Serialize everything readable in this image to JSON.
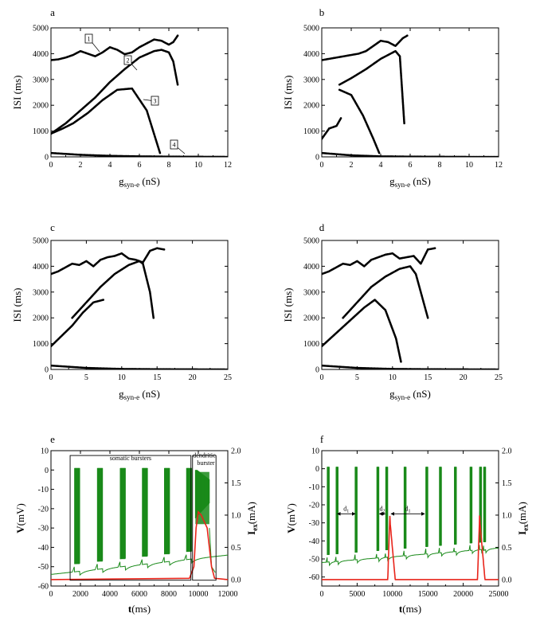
{
  "chart_data": [
    {
      "panel": "a",
      "type": "scatter",
      "xlabel": "g",
      "xlabel_sub": "syn-e",
      "xlabel_unit": " (nS)",
      "ylabel": "ISI (ms)",
      "xlim": [
        0,
        12
      ],
      "ylim": [
        0,
        5000
      ],
      "xticks": [
        "0",
        "2",
        "4",
        "6",
        "8",
        "10",
        "12"
      ],
      "yticks": [
        "0",
        "1000",
        "2000",
        "3000",
        "4000",
        "5000"
      ],
      "callouts": [
        "1",
        "2",
        "3",
        "4"
      ],
      "series": [
        {
          "x": [
            0,
            0.5,
            1,
            1.5,
            2,
            2.5,
            3,
            3.5,
            4,
            4.5,
            5,
            5.5,
            6,
            6.5,
            7,
            7.5,
            8,
            8.3,
            8.6
          ],
          "y": [
            3750,
            3780,
            3850,
            3950,
            4100,
            4000,
            3900,
            4050,
            4250,
            4150,
            3980,
            4050,
            4250,
            4400,
            4550,
            4500,
            4350,
            4450,
            4700
          ]
        },
        {
          "x": [
            0,
            1,
            2,
            3,
            4,
            5,
            6,
            7,
            7.5,
            8,
            8.3,
            8.6
          ],
          "y": [
            900,
            1300,
            1800,
            2300,
            2900,
            3400,
            3850,
            4100,
            4150,
            4050,
            3700,
            2800
          ]
        },
        {
          "x": [
            0,
            0.8,
            1.5,
            2.5,
            3.5,
            4.5,
            5.5,
            6.5,
            7.4
          ],
          "y": [
            900,
            1100,
            1300,
            1700,
            2200,
            2600,
            2650,
            1800,
            150
          ]
        },
        {
          "x": [
            0,
            2,
            4,
            6,
            8,
            10,
            12
          ],
          "y": [
            150,
            80,
            40,
            20,
            10,
            5,
            0
          ]
        }
      ]
    },
    {
      "panel": "b",
      "type": "scatter",
      "xlabel": "g",
      "xlabel_sub": "syn-e",
      "xlabel_unit": " (nS)",
      "ylabel": "ISI (ms)",
      "xlim": [
        0,
        12
      ],
      "ylim": [
        0,
        5000
      ],
      "xticks": [
        "0",
        "2",
        "4",
        "6",
        "8",
        "10",
        "12"
      ],
      "yticks": [
        "0",
        "1000",
        "2000",
        "3000",
        "4000",
        "5000"
      ],
      "series": [
        {
          "x": [
            0,
            0.5,
            1,
            1.5,
            2,
            2.5,
            3,
            3.5,
            4,
            4.5,
            5,
            5.5,
            5.8
          ],
          "y": [
            3750,
            3800,
            3850,
            3900,
            3950,
            4000,
            4100,
            4300,
            4500,
            4450,
            4300,
            4600,
            4700
          ]
        },
        {
          "x": [
            1.2,
            2,
            3,
            4,
            5,
            5.3,
            5.6
          ],
          "y": [
            2800,
            3050,
            3400,
            3800,
            4100,
            3900,
            1300
          ]
        },
        {
          "x": [
            1.2,
            2,
            2.8,
            3.5,
            3.9
          ],
          "y": [
            2600,
            2400,
            1600,
            700,
            150
          ]
        },
        {
          "x": [
            0,
            0.5,
            1,
            1.3
          ],
          "y": [
            700,
            1100,
            1200,
            1500
          ]
        },
        {
          "x": [
            0,
            2,
            4,
            6,
            8,
            10,
            12
          ],
          "y": [
            150,
            60,
            20,
            10,
            5,
            0,
            0
          ]
        }
      ]
    },
    {
      "panel": "c",
      "type": "scatter",
      "xlabel": "g",
      "xlabel_sub": "syn-e",
      "xlabel_unit": " (nS)",
      "ylabel": "ISI (ms)",
      "xlim": [
        0,
        25
      ],
      "ylim": [
        0,
        5000
      ],
      "xticks": [
        "0",
        "5",
        "10",
        "15",
        "20",
        "25"
      ],
      "yticks": [
        "0",
        "1000",
        "2000",
        "3000",
        "4000",
        "5000"
      ],
      "series": [
        {
          "x": [
            0,
            1,
            2,
            3,
            4,
            5,
            6,
            7,
            8,
            9,
            10,
            11,
            12,
            13,
            14,
            15,
            16
          ],
          "y": [
            3700,
            3800,
            3950,
            4100,
            4050,
            4200,
            4000,
            4250,
            4350,
            4400,
            4500,
            4300,
            4250,
            4150,
            4600,
            4700,
            4650
          ]
        },
        {
          "x": [
            3,
            5,
            7,
            9,
            11,
            12.5,
            13,
            14,
            14.5
          ],
          "y": [
            2000,
            2600,
            3200,
            3700,
            4050,
            4200,
            4100,
            3000,
            2000
          ]
        },
        {
          "x": [
            0,
            1.5,
            3,
            4.5,
            6,
            7.4
          ],
          "y": [
            900,
            1300,
            1700,
            2200,
            2600,
            2700
          ]
        },
        {
          "x": [
            0,
            5,
            10,
            15,
            20,
            25
          ],
          "y": [
            150,
            60,
            20,
            10,
            5,
            0
          ]
        }
      ]
    },
    {
      "panel": "d",
      "type": "scatter",
      "xlabel": "g",
      "xlabel_sub": "syn-e",
      "xlabel_unit": " (nS)",
      "ylabel": "ISI (ms)",
      "xlim": [
        0,
        25
      ],
      "ylim": [
        0,
        5000
      ],
      "xticks": [
        "0",
        "5",
        "10",
        "15",
        "20",
        "25"
      ],
      "yticks": [
        "0",
        "1000",
        "2000",
        "3000",
        "4000",
        "5000"
      ],
      "series": [
        {
          "x": [
            0,
            1,
            2,
            3,
            4,
            5,
            6,
            7,
            8,
            9,
            10,
            11,
            12,
            13,
            14,
            15,
            16
          ],
          "y": [
            3700,
            3800,
            3950,
            4100,
            4050,
            4200,
            4000,
            4250,
            4350,
            4450,
            4500,
            4300,
            4350,
            4400,
            4100,
            4650,
            4700
          ]
        },
        {
          "x": [
            3,
            5,
            7,
            9,
            11,
            12.5,
            13.3,
            14,
            15
          ],
          "y": [
            2000,
            2600,
            3200,
            3600,
            3900,
            4000,
            3700,
            3000,
            2000
          ]
        },
        {
          "x": [
            0,
            2,
            4,
            6,
            7.5,
            9,
            10.5,
            11.2
          ],
          "y": [
            900,
            1400,
            1900,
            2400,
            2700,
            2300,
            1200,
            300
          ]
        },
        {
          "x": [
            0,
            5,
            10,
            15,
            20,
            25
          ],
          "y": [
            150,
            60,
            20,
            10,
            5,
            0
          ]
        }
      ]
    },
    {
      "panel": "e",
      "type": "line",
      "xlabel": "t",
      "xlabel_unit": "(ms)",
      "ylabel": "V(mV)",
      "y2label": "I",
      "y2label_sub": "ex",
      "y2label_unit": "(mA)",
      "xlim": [
        0,
        12000
      ],
      "ylim": [
        -60,
        10
      ],
      "y2lim": [
        -0.1,
        2.0
      ],
      "xticks": [
        "0",
        "2000",
        "4000",
        "6000",
        "8000",
        "10000",
        "12000"
      ],
      "yticks": [
        "-60",
        "-50",
        "-40",
        "-30",
        "-20",
        "-10",
        "0",
        "10"
      ],
      "y2ticks": [
        "0.0",
        "0.5",
        "1.0",
        "1.5",
        "2.0"
      ],
      "annotations": [
        "somatic bursters",
        "dendritic",
        "burster"
      ],
      "series": [
        {
          "name": "V",
          "color": "#1a8a1a",
          "burst_starts": [
            1600,
            3150,
            4700,
            6200,
            7700,
            9200
          ],
          "burst_width": 350,
          "dendritic_burst": [
            9800,
            10750
          ],
          "baseline_start": -54,
          "baseline_end": -44
        },
        {
          "name": "I",
          "color": "#e8241a",
          "x": [
            0,
            9400,
            9700,
            9850,
            10000,
            10200,
            10600,
            10900,
            11100,
            12000
          ],
          "y": [
            0.0,
            0.02,
            0.2,
            0.8,
            1.05,
            1.0,
            0.8,
            0.2,
            0.02,
            0.0
          ]
        }
      ]
    },
    {
      "panel": "f",
      "type": "line",
      "xlabel": "t",
      "xlabel_unit": "(ms)",
      "ylabel": "V(mV)",
      "y2label": "I",
      "y2label_sub": "ex",
      "y2label_unit": "(mA)",
      "xlim": [
        0,
        26000
      ],
      "ylim": [
        -65,
        10
      ],
      "y2lim": [
        -0.1,
        2.0
      ],
      "xticks": [
        "0",
        "5000",
        "10000",
        "15000",
        "20000",
        "25000"
      ],
      "yticks": [
        "-60",
        "-50",
        "-40",
        "-30",
        "-20",
        "-10",
        "0",
        "10"
      ],
      "y2ticks": [
        "0.0",
        "0.5",
        "1.0",
        "1.5",
        "2.0"
      ],
      "annotations": [
        "d",
        "1",
        "d",
        "2",
        "d",
        "1"
      ],
      "series": [
        {
          "name": "V",
          "color": "#1a8a1a",
          "burst_starts": [
            800,
            2100,
            4900,
            8100,
            9400,
            12100,
            15300,
            17300,
            19500,
            21800,
            23200,
            23800
          ],
          "burst_width": 300,
          "baseline_start": -52,
          "baseline_end": -44
        },
        {
          "name": "I",
          "color": "#e8241a",
          "peaks": [
            10000,
            23200
          ],
          "peak_value": 1.0,
          "baseline": 0.0
        }
      ]
    }
  ]
}
